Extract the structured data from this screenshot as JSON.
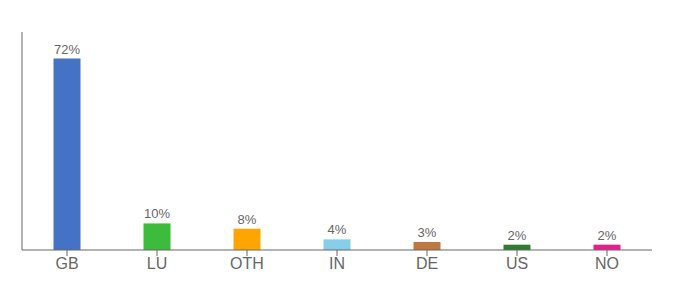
{
  "chart_data": {
    "type": "bar",
    "categories": [
      "GB",
      "LU",
      "OTH",
      "IN",
      "DE",
      "US",
      "NO"
    ],
    "values": [
      72,
      10,
      8,
      4,
      3,
      2,
      2
    ],
    "value_labels": [
      "72%",
      "10%",
      "8%",
      "4%",
      "3%",
      "2%",
      "2%"
    ],
    "colors": [
      "#4472c4",
      "#3dbb3d",
      "#ffa500",
      "#87ceeb",
      "#c07840",
      "#2e7d32",
      "#e91e8c"
    ],
    "ylim": [
      0,
      82
    ],
    "data_labels": true,
    "tick_labels": "x",
    "grid": false
  }
}
